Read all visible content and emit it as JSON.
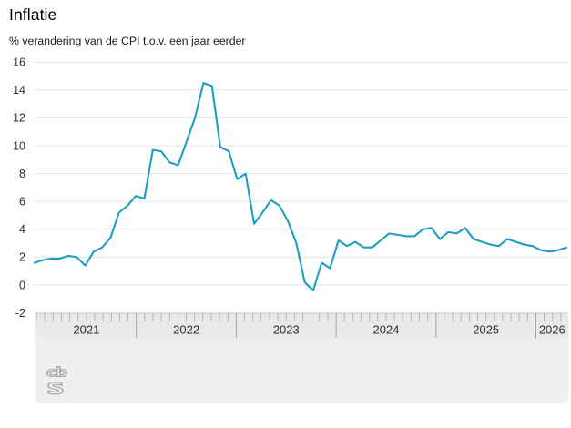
{
  "header": {
    "title": "Inflatie",
    "subtitle": "% verandering van de CPI t.o.v. een jaar eerder"
  },
  "footer": {
    "logo_name": "cbs-logo",
    "logo_top": "cb",
    "logo_bottom": "s"
  },
  "colors": {
    "line": "#1f9dc2",
    "grid": "#e4e4e4",
    "panel": "#efefef",
    "band": "#e9e9e9",
    "band_border": "#c4c4c4",
    "tick": "#b5b5b5",
    "separator": "#a5a5a5",
    "axis_text": "#2e2e2e",
    "logo": "#a8a8a8",
    "background": "#ffffff"
  },
  "chart_data": {
    "type": "line",
    "title": "Inflatie",
    "subtitle": "% verandering van de CPI t.o.v. een jaar eerder",
    "xlabel": "",
    "ylabel": "% verandering CPI t.o.v. een jaar eerder",
    "grid": "horizontal",
    "legend": "none",
    "ylim": [
      -2,
      16
    ],
    "y_ticks": [
      -2,
      0,
      2,
      4,
      6,
      8,
      10,
      12,
      14,
      16
    ],
    "x_year_labels": [
      "2021",
      "2022",
      "2023",
      "2024",
      "2025",
      "2026"
    ],
    "x_months": [
      "2021-01",
      "2021-02",
      "2021-03",
      "2021-04",
      "2021-05",
      "2021-06",
      "2021-07",
      "2021-08",
      "2021-09",
      "2021-10",
      "2021-11",
      "2021-12",
      "2022-01",
      "2022-02",
      "2022-03",
      "2022-04",
      "2022-05",
      "2022-06",
      "2022-07",
      "2022-08",
      "2022-09",
      "2022-10",
      "2022-11",
      "2022-12",
      "2023-01",
      "2023-02",
      "2023-03",
      "2023-04",
      "2023-05",
      "2023-06",
      "2023-07",
      "2023-08",
      "2023-09",
      "2023-10",
      "2023-11",
      "2023-12",
      "2024-01",
      "2024-02",
      "2024-03",
      "2024-04",
      "2024-05",
      "2024-06",
      "2024-07",
      "2024-08",
      "2024-09",
      "2024-10",
      "2024-11",
      "2024-12",
      "2025-01",
      "2025-02",
      "2025-03",
      "2025-04",
      "2025-05",
      "2025-06",
      "2025-07",
      "2025-08",
      "2025-09",
      "2025-10",
      "2025-11",
      "2025-12",
      "2026-01",
      "2026-02",
      "2026-03",
      "2026-04"
    ],
    "series": [
      {
        "name": "Inflatie (CPI, % verandering t.o.v. een jaar eerder)",
        "values": [
          1.6,
          1.8,
          1.9,
          1.9,
          2.1,
          2.0,
          1.4,
          2.4,
          2.7,
          3.4,
          5.2,
          5.7,
          6.4,
          6.2,
          9.7,
          9.6,
          8.8,
          8.6,
          10.3,
          12.0,
          14.5,
          14.3,
          9.9,
          9.6,
          7.6,
          8.0,
          4.4,
          5.2,
          6.1,
          5.7,
          4.6,
          3.0,
          0.2,
          -0.4,
          1.6,
          1.2,
          3.2,
          2.8,
          3.1,
          2.7,
          2.7,
          3.2,
          3.7,
          3.6,
          3.5,
          3.5,
          4.0,
          4.1,
          3.3,
          3.8,
          3.7,
          4.1,
          3.3,
          3.1,
          2.9,
          2.8,
          3.3,
          3.1,
          2.9,
          2.8,
          2.5,
          2.4,
          2.5,
          2.7
        ]
      }
    ]
  }
}
